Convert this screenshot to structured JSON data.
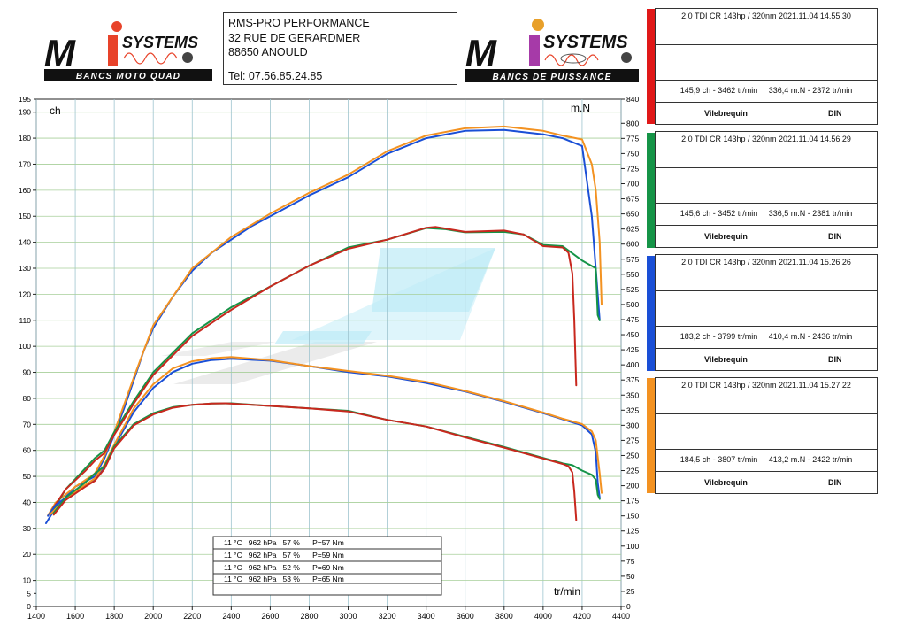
{
  "header": {
    "logo_left": {
      "brand": "SYSTEMS",
      "letters": "Mi",
      "tagline": "BANCS MOTO QUAD"
    },
    "logo_right": {
      "brand": "SYSTEMS",
      "letters": "Mi",
      "tagline": "BANCS DE PUISSANCE"
    },
    "address_lines": [
      "RMS-PRO PERFORMANCE",
      "32 RUE DE GERARDMER",
      "88650 ANOULD"
    ],
    "phone": "Tel: 07.56.85.24.85"
  },
  "runs": [
    {
      "title": "2.0 TDI CR 143hp / 320nm   2021.11.04 14.55.30",
      "power": "145,9 ch - 3462 tr/min",
      "torque": "336,4 m.N - 2372 tr/min",
      "foot_left": "Vilebrequin",
      "foot_right": "DIN",
      "color": "#e01818"
    },
    {
      "title": "2.0 TDI CR 143hp / 320nm   2021.11.04 14.56.29",
      "power": "145,6 ch - 3452 tr/min",
      "torque": "336,5 m.N - 2381 tr/min",
      "foot_left": "Vilebrequin",
      "foot_right": "DIN",
      "color": "#159447"
    },
    {
      "title": "2.0 TDI CR 143hp / 320nm   2021.11.04 15.26.26",
      "power": "183,2 ch - 3799 tr/min",
      "torque": "410,4 m.N - 2436 tr/min",
      "foot_left": "Vilebrequin",
      "foot_right": "DIN",
      "color": "#1a4fd6"
    },
    {
      "title": "2.0 TDI CR 143hp / 320nm   2021.11.04 15.27.22",
      "power": "184,5 ch - 3807 tr/min",
      "torque": "413,2 m.N - 2422 tr/min",
      "foot_left": "Vilebrequin",
      "foot_right": "DIN",
      "color": "#f39221"
    }
  ],
  "conditions": [
    "11 °C   962 hPa   57 %      P=57 Nm",
    "11 °C   962 hPa   57 %      P=59 Nm",
    "11 °C   962 hPa   52 %      P=69 Nm",
    "11 °C   962 hPa   53 %      P=65 Nm"
  ],
  "chart_data": {
    "type": "line",
    "title": "",
    "xlabel": "tr/min",
    "ylabel_left": "ch",
    "ylabel_right": "m.N",
    "xlim": [
      1400,
      4400
    ],
    "x_ticks": [
      1400,
      1600,
      1800,
      2000,
      2200,
      2400,
      2600,
      2800,
      3000,
      3200,
      3400,
      3600,
      3800,
      4000,
      4200,
      4400
    ],
    "ylim_left": [
      0,
      195
    ],
    "y_left_ticks": [
      0,
      10,
      20,
      30,
      40,
      50,
      60,
      70,
      80,
      90,
      100,
      110,
      120,
      130,
      140,
      150,
      160,
      170,
      180,
      190
    ],
    "y_left_minor": [
      5,
      195
    ],
    "ylim_right": [
      0,
      840
    ],
    "y_right_ticks": [
      0,
      25,
      50,
      75,
      100,
      125,
      150,
      175,
      200,
      225,
      250,
      275,
      300,
      325,
      350,
      375,
      400,
      425,
      450,
      475,
      500,
      525,
      550,
      575,
      600,
      625,
      650,
      675,
      700,
      725,
      750,
      775,
      800,
      840
    ],
    "grid": true,
    "legend": "right-side panels",
    "series": [
      {
        "color": "#1a4fd6",
        "axis": "left",
        "points": [
          [
            1450,
            32
          ],
          [
            1500,
            38
          ],
          [
            1550,
            42
          ],
          [
            1600,
            46
          ],
          [
            1650,
            48
          ],
          [
            1700,
            50
          ],
          [
            1750,
            57
          ],
          [
            1800,
            66
          ],
          [
            1850,
            76
          ],
          [
            1900,
            87
          ],
          [
            1950,
            98
          ],
          [
            2000,
            107
          ],
          [
            2100,
            119
          ],
          [
            2200,
            129
          ],
          [
            2300,
            136
          ],
          [
            2400,
            141
          ],
          [
            2500,
            146
          ],
          [
            2600,
            150
          ],
          [
            2800,
            158
          ],
          [
            3000,
            165
          ],
          [
            3200,
            174
          ],
          [
            3400,
            180
          ],
          [
            3600,
            182.8
          ],
          [
            3800,
            183.2
          ],
          [
            4000,
            181.5
          ],
          [
            4100,
            180
          ],
          [
            4200,
            177
          ],
          [
            4250,
            150
          ],
          [
            4280,
            120
          ],
          [
            4290,
            110
          ]
        ]
      },
      {
        "color": "#f39221",
        "axis": "left",
        "points": [
          [
            1460,
            35
          ],
          [
            1500,
            40
          ],
          [
            1600,
            46
          ],
          [
            1700,
            51
          ],
          [
            1750,
            58
          ],
          [
            1800,
            67
          ],
          [
            1900,
            88
          ],
          [
            2000,
            108
          ],
          [
            2200,
            130
          ],
          [
            2400,
            142
          ],
          [
            2600,
            151
          ],
          [
            2800,
            159
          ],
          [
            3000,
            166
          ],
          [
            3200,
            175
          ],
          [
            3400,
            181
          ],
          [
            3600,
            183.8
          ],
          [
            3800,
            184.5
          ],
          [
            4000,
            182.8
          ],
          [
            4100,
            181
          ],
          [
            4200,
            179.5
          ],
          [
            4250,
            170
          ],
          [
            4270,
            160
          ],
          [
            4290,
            140
          ],
          [
            4300,
            116
          ]
        ]
      },
      {
        "color": "#159447",
        "axis": "left",
        "points": [
          [
            1480,
            36
          ],
          [
            1550,
            45
          ],
          [
            1650,
            53
          ],
          [
            1700,
            57
          ],
          [
            1750,
            60
          ],
          [
            1800,
            67
          ],
          [
            1900,
            79
          ],
          [
            2000,
            90
          ],
          [
            2200,
            105
          ],
          [
            2400,
            115
          ],
          [
            2600,
            123
          ],
          [
            2800,
            131
          ],
          [
            3000,
            138
          ],
          [
            3200,
            141
          ],
          [
            3400,
            145.5
          ],
          [
            3500,
            145
          ],
          [
            3600,
            143.8
          ],
          [
            3800,
            144
          ],
          [
            3900,
            143
          ],
          [
            4000,
            139
          ],
          [
            4100,
            138.5
          ],
          [
            4200,
            133
          ],
          [
            4270,
            130
          ],
          [
            4280,
            112
          ],
          [
            4290,
            110
          ]
        ]
      },
      {
        "color": "#c8281e",
        "axis": "left",
        "points": [
          [
            1480,
            37
          ],
          [
            1550,
            45
          ],
          [
            1650,
            52
          ],
          [
            1700,
            56
          ],
          [
            1750,
            59
          ],
          [
            1800,
            66
          ],
          [
            1900,
            78
          ],
          [
            2000,
            89
          ],
          [
            2200,
            104
          ],
          [
            2400,
            114
          ],
          [
            2600,
            123
          ],
          [
            2800,
            131
          ],
          [
            3000,
            137.5
          ],
          [
            3200,
            141
          ],
          [
            3400,
            145.6
          ],
          [
            3450,
            145.9
          ],
          [
            3600,
            144
          ],
          [
            3800,
            144.5
          ],
          [
            3900,
            143
          ],
          [
            4000,
            138.5
          ],
          [
            4100,
            138
          ],
          [
            4130,
            136
          ],
          [
            4150,
            128
          ],
          [
            4160,
            110
          ],
          [
            4170,
            85
          ]
        ]
      },
      {
        "color": "#1a4fd6",
        "axis": "right",
        "points": [
          [
            1460,
            150
          ],
          [
            1500,
            168
          ],
          [
            1550,
            180
          ],
          [
            1600,
            192
          ],
          [
            1650,
            200
          ],
          [
            1700,
            210
          ],
          [
            1750,
            232
          ],
          [
            1800,
            265
          ],
          [
            1900,
            322
          ],
          [
            2000,
            362
          ],
          [
            2100,
            388
          ],
          [
            2200,
            402
          ],
          [
            2300,
            408
          ],
          [
            2400,
            410
          ],
          [
            2600,
            407
          ],
          [
            2800,
            398
          ],
          [
            3000,
            388
          ],
          [
            3200,
            381
          ],
          [
            3400,
            370
          ],
          [
            3600,
            356
          ],
          [
            3800,
            339
          ],
          [
            4000,
            320
          ],
          [
            4100,
            310
          ],
          [
            4200,
            300
          ],
          [
            4250,
            285
          ],
          [
            4270,
            255
          ],
          [
            4280,
            205
          ],
          [
            4290,
            180
          ]
        ]
      },
      {
        "color": "#f39221",
        "axis": "right",
        "points": [
          [
            1470,
            152
          ],
          [
            1550,
            178
          ],
          [
            1600,
            190
          ],
          [
            1700,
            212
          ],
          [
            1750,
            235
          ],
          [
            1800,
            268
          ],
          [
            1900,
            328
          ],
          [
            2000,
            368
          ],
          [
            2100,
            394
          ],
          [
            2200,
            406
          ],
          [
            2300,
            411
          ],
          [
            2400,
            413
          ],
          [
            2600,
            408
          ],
          [
            2800,
            398
          ],
          [
            3000,
            390
          ],
          [
            3200,
            382
          ],
          [
            3400,
            372
          ],
          [
            3600,
            357
          ],
          [
            3800,
            340
          ],
          [
            4000,
            321
          ],
          [
            4100,
            311
          ],
          [
            4200,
            302
          ],
          [
            4250,
            290
          ],
          [
            4270,
            275
          ],
          [
            4290,
            220
          ],
          [
            4300,
            188
          ]
        ]
      },
      {
        "color": "#159447",
        "axis": "right",
        "points": [
          [
            1490,
            155
          ],
          [
            1550,
            180
          ],
          [
            1650,
            205
          ],
          [
            1700,
            220
          ],
          [
            1750,
            232
          ],
          [
            1800,
            265
          ],
          [
            1900,
            302
          ],
          [
            2000,
            320
          ],
          [
            2100,
            330
          ],
          [
            2200,
            334
          ],
          [
            2300,
            336
          ],
          [
            2400,
            336.5
          ],
          [
            2600,
            332
          ],
          [
            2800,
            328
          ],
          [
            3000,
            324
          ],
          [
            3200,
            309
          ],
          [
            3400,
            298
          ],
          [
            3600,
            281
          ],
          [
            3800,
            264
          ],
          [
            4000,
            246
          ],
          [
            4100,
            237
          ],
          [
            4150,
            234
          ],
          [
            4200,
            225
          ],
          [
            4250,
            218
          ],
          [
            4270,
            210
          ],
          [
            4280,
            185
          ],
          [
            4290,
            178
          ]
        ]
      },
      {
        "color": "#c8281e",
        "axis": "right",
        "points": [
          [
            1490,
            152
          ],
          [
            1550,
            176
          ],
          [
            1650,
            198
          ],
          [
            1700,
            208
          ],
          [
            1750,
            228
          ],
          [
            1800,
            262
          ],
          [
            1900,
            300
          ],
          [
            2000,
            318
          ],
          [
            2100,
            329
          ],
          [
            2200,
            334
          ],
          [
            2300,
            336
          ],
          [
            2372,
            336.4
          ],
          [
            2600,
            332
          ],
          [
            2800,
            328
          ],
          [
            3000,
            323
          ],
          [
            3200,
            309
          ],
          [
            3400,
            298
          ],
          [
            3600,
            280
          ],
          [
            3800,
            263
          ],
          [
            4000,
            245
          ],
          [
            4100,
            236
          ],
          [
            4130,
            232
          ],
          [
            4150,
            222
          ],
          [
            4160,
            190
          ],
          [
            4170,
            143
          ]
        ]
      }
    ]
  }
}
